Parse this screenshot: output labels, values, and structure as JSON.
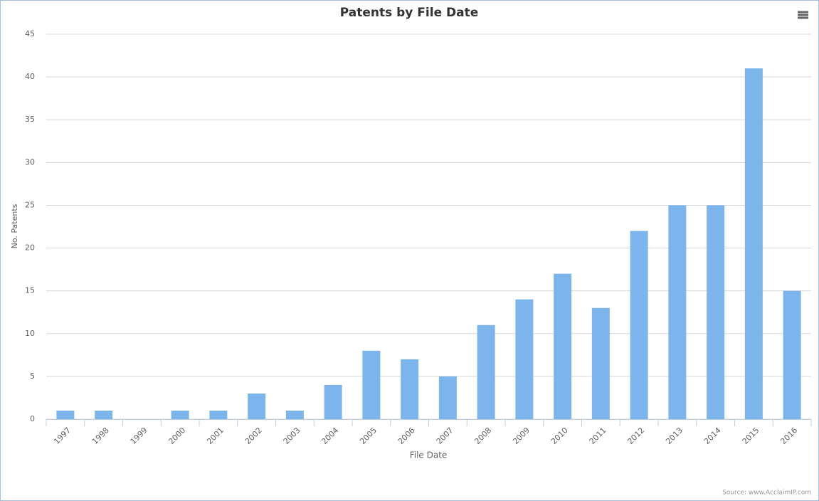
{
  "chart_data": {
    "type": "bar",
    "title": "Patents by File Date",
    "x_label": "File Date",
    "y_label": "No. Patents",
    "credit": "Source: www.AcclaimIP.com",
    "categories": [
      "1997",
      "1998",
      "1999",
      "2000",
      "2001",
      "2002",
      "2003",
      "2004",
      "2005",
      "2006",
      "2007",
      "2008",
      "2009",
      "2010",
      "2011",
      "2012",
      "2013",
      "2014",
      "2015",
      "2016"
    ],
    "values": [
      1,
      1,
      0,
      1,
      1,
      3,
      1,
      4,
      8,
      7,
      5,
      11,
      14,
      17,
      13,
      22,
      25,
      25,
      41,
      15
    ],
    "color": "#7cb5ec",
    "ylim": [
      0,
      45
    ],
    "yticks": [
      0,
      5,
      10,
      15,
      20,
      25,
      30,
      35,
      40,
      45
    ],
    "grid": true
  }
}
